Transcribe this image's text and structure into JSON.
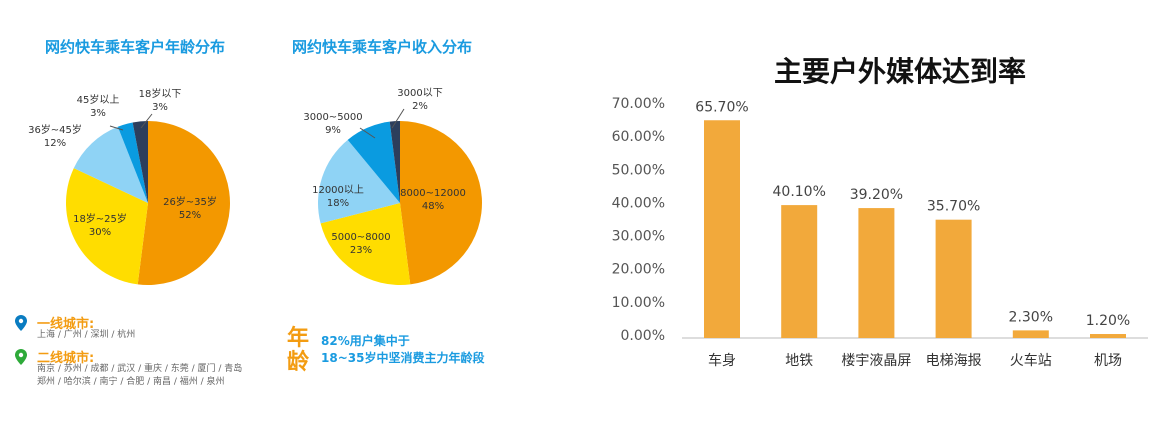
{
  "chart_data": [
    {
      "type": "pie",
      "title": "网约快车乘车客户年龄分布",
      "slices": [
        {
          "label": "26岁~35岁",
          "value": 52,
          "display": "52%",
          "color": "#f39800"
        },
        {
          "label": "18岁~25岁",
          "value": 30,
          "display": "30%",
          "color": "#ffdd00"
        },
        {
          "label": "36岁~45岁",
          "value": 12,
          "display": "12%",
          "color": "#8fd3f5"
        },
        {
          "label": "45岁以上",
          "value": 3,
          "display": "3%",
          "color": "#0a9be0"
        },
        {
          "label": "18岁以下",
          "value": 3,
          "display": "3%",
          "color": "#2c3e5c"
        }
      ]
    },
    {
      "type": "pie",
      "title": "网约快车乘车客户收入分布",
      "slices": [
        {
          "label": "8000~12000",
          "value": 48,
          "display": "48%",
          "color": "#f39800"
        },
        {
          "label": "5000~8000",
          "value": 23,
          "display": "23%",
          "color": "#ffdd00"
        },
        {
          "label": "12000以上",
          "value": 18,
          "display": "18%",
          "color": "#8fd3f5"
        },
        {
          "label": "3000~5000",
          "value": 9,
          "display": "9%",
          "color": "#0a9be0"
        },
        {
          "label": "3000以下",
          "value": 2,
          "display": "2%",
          "color": "#2c3e5c"
        }
      ]
    },
    {
      "type": "bar",
      "title": "主要户外媒体达到率",
      "categories": [
        "车身",
        "地铁",
        "楼宇液晶屏",
        "电梯海报",
        "火车站",
        "机场"
      ],
      "values": [
        65.7,
        40.1,
        39.2,
        35.7,
        2.3,
        1.2
      ],
      "data_labels": [
        "65.70%",
        "40.10%",
        "39.20%",
        "35.70%",
        "2.30%",
        "1.20%"
      ],
      "yticks": [
        "0.00%",
        "10.00%",
        "20.00%",
        "30.00%",
        "40.00%",
        "50.00%",
        "60.00%",
        "70.00%"
      ],
      "ylim": [
        0,
        70
      ],
      "grid": false,
      "color": "#f2a93b"
    }
  ],
  "cities": {
    "tier1_title": "一线城市:",
    "tier1_list": "上海 / 广州 / 深圳 / 杭州",
    "tier2_title": "二线城市:",
    "tier2_list_1": "南京 / 苏州 / 成都 / 武汉 / 重庆 / 东莞 / 厦门 / 青岛",
    "tier2_list_2": "郑州 / 哈尔滨 / 南宁 / 合肥 / 南昌 / 福州 / 泉州",
    "tier1_pin_color": "#0a7cc1",
    "tier2_pin_color": "#2eaa3a"
  },
  "age_note": {
    "big_char_1": "年",
    "big_char_2": "龄",
    "line1": "82%用户集中于",
    "line2": "18~35岁中坚消费主力年龄段"
  }
}
